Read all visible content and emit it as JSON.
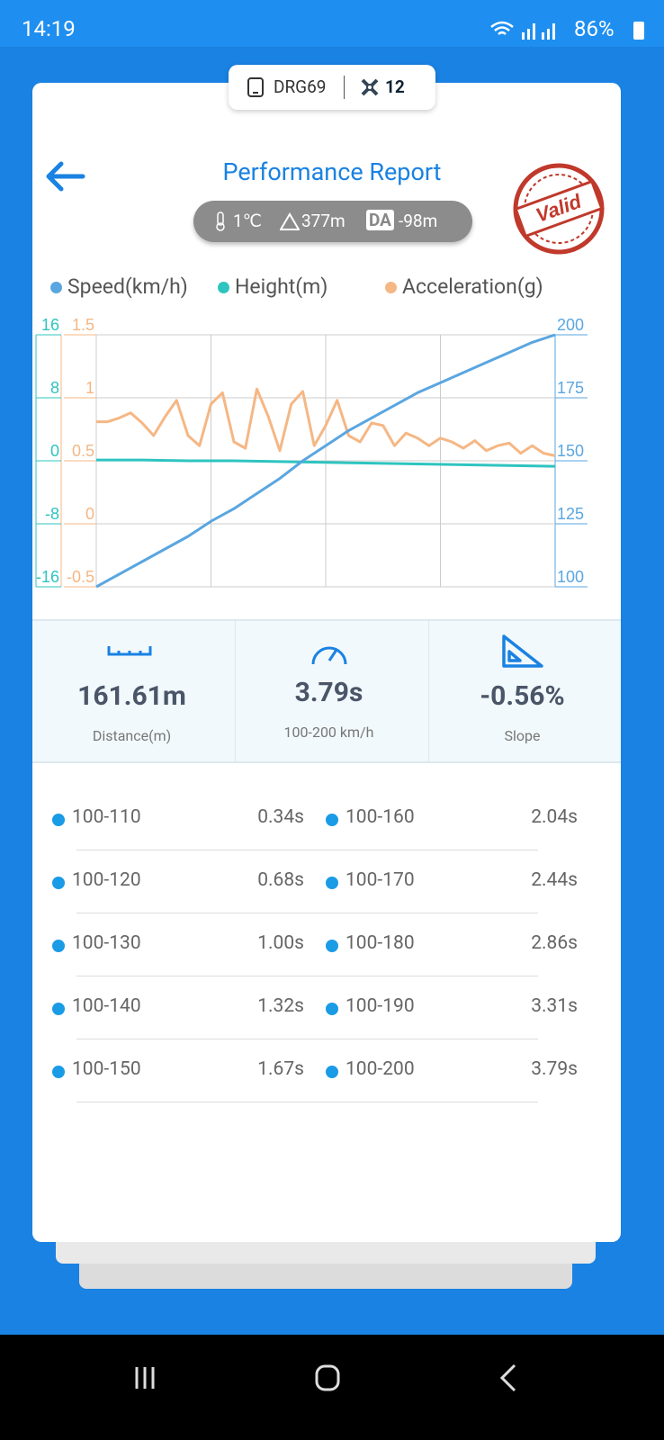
{
  "status_bar": {
    "time": "14:19",
    "battery": "86%"
  },
  "device": {
    "name": "DRG69",
    "satellites": "12"
  },
  "header": {
    "title": "Performance Report",
    "stamp": "Valid"
  },
  "conditions": {
    "temperature": "1℃",
    "altitude": "377m",
    "da_label": "DA",
    "da_value": "-98m"
  },
  "chart_data": {
    "type": "line",
    "series": [
      {
        "name": "Speed(km/h)",
        "color": "#5aa6e0",
        "axis": "y2",
        "values": [
          100,
          105,
          110,
          115,
          120,
          126,
          131,
          137,
          143,
          150,
          156,
          162,
          167,
          172,
          177,
          181,
          185,
          189,
          193,
          197,
          200
        ]
      },
      {
        "name": "Height(m)",
        "color": "#2ec4c0",
        "values": [
          0.1,
          0.1,
          0,
          0,
          -0.1,
          -0.2,
          -0.3,
          -0.4,
          -0.5,
          -0.6,
          -0.7
        ]
      },
      {
        "name": "Acceleration(g)",
        "color": "#f5b784",
        "axis": "y3",
        "values": [
          0.81,
          0.81,
          0.84,
          0.88,
          0.8,
          0.7,
          0.85,
          0.98,
          0.7,
          0.62,
          0.95,
          1.04,
          0.65,
          0.6,
          1.07,
          0.85,
          0.58,
          0.95,
          1.05,
          0.62,
          0.78,
          0.98,
          0.7,
          0.65,
          0.8,
          0.78,
          0.62,
          0.72,
          0.68,
          0.62,
          0.68,
          0.65,
          0.6,
          0.66,
          0.58,
          0.62,
          0.64,
          0.56,
          0.62,
          0.56,
          0.54
        ]
      }
    ],
    "ylim": [
      -16,
      16
    ],
    "yticks": [
      -16,
      -8,
      0,
      8,
      16
    ],
    "y3lim": [
      -0.5,
      1.5
    ],
    "y3ticks": [
      -0.5,
      0,
      0.5,
      1,
      1.5
    ],
    "y2lim": [
      100,
      200
    ],
    "y2ticks": [
      100,
      125,
      150,
      175,
      200
    ],
    "grid": true
  },
  "stats": [
    {
      "value": "161.61m",
      "label": "Distance(m)"
    },
    {
      "value": "3.79s",
      "label": "100-200 km/h"
    },
    {
      "value": "-0.56%",
      "label": "Slope"
    }
  ],
  "splits": [
    [
      "100-110",
      "0.34s",
      "100-160",
      "2.04s"
    ],
    [
      "100-120",
      "0.68s",
      "100-170",
      "2.44s"
    ],
    [
      "100-130",
      "1.00s",
      "100-180",
      "2.86s"
    ],
    [
      "100-140",
      "1.32s",
      "100-190",
      "3.31s"
    ],
    [
      "100-150",
      "1.67s",
      "100-200",
      "3.79s"
    ]
  ]
}
